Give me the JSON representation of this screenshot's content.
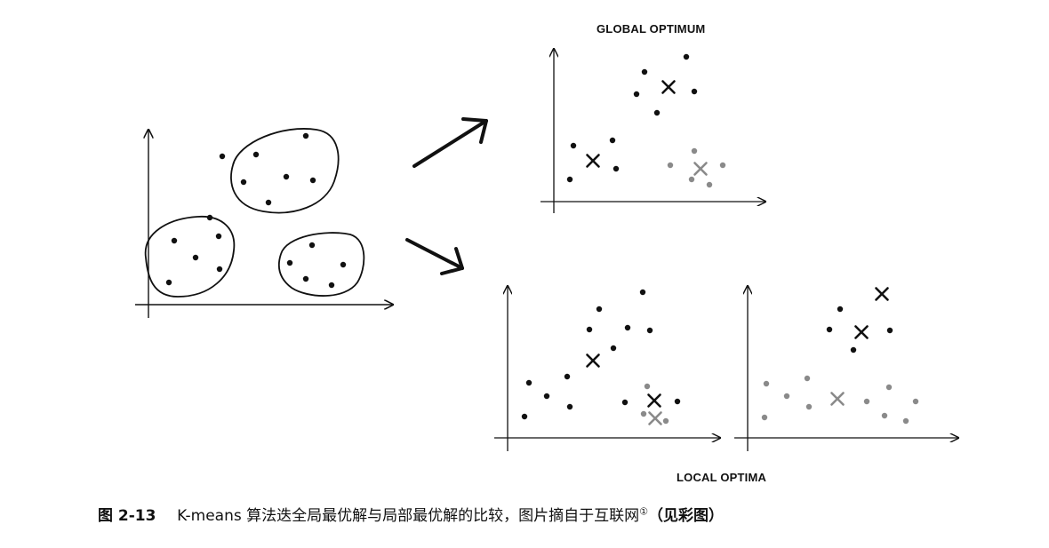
{
  "labels": {
    "global": "GLOBAL OPTIMUM",
    "local": "LOCAL OPTIMA"
  },
  "caption": {
    "figure_no": "图 2-13",
    "text": "K-means 算法迭全局最优解与局部最优解的比较，图片摘自于互联网",
    "footnote_mark": "①",
    "suffix": "（见彩图）"
  },
  "colors": {
    "ink": "#111111",
    "gray": "#8a8a8a"
  },
  "panels": {
    "input": {
      "points": [
        [
          344,
          153
        ],
        [
          288,
          174
        ],
        [
          250,
          176
        ],
        [
          322,
          199
        ],
        [
          352,
          203
        ],
        [
          274,
          205
        ],
        [
          302,
          228
        ],
        [
          236,
          245
        ],
        [
          246,
          266
        ],
        [
          196,
          271
        ],
        [
          220,
          290
        ],
        [
          247,
          303
        ],
        [
          190,
          318
        ],
        [
          351,
          276
        ],
        [
          326,
          296
        ],
        [
          386,
          298
        ],
        [
          344,
          314
        ],
        [
          373,
          321
        ]
      ],
      "clusters": 3
    },
    "global": {
      "points": [
        [
          725,
          81
        ],
        [
          772,
          64
        ],
        [
          716,
          106
        ],
        [
          781,
          103
        ],
        [
          739,
          127
        ],
        [
          645,
          164
        ],
        [
          689,
          158
        ],
        [
          693,
          190
        ],
        [
          641,
          202
        ],
        [
          754,
          186
        ],
        [
          781,
          170
        ],
        [
          813,
          186
        ],
        [
          798,
          208
        ],
        [
          778,
          202
        ]
      ],
      "gray_points": [
        [
          754,
          186
        ],
        [
          781,
          170
        ],
        [
          813,
          186
        ],
        [
          778,
          202
        ],
        [
          798,
          208
        ]
      ],
      "centroids": [
        [
          752,
          98,
          "ink"
        ],
        [
          667,
          181,
          "ink"
        ],
        [
          788,
          190,
          "gray"
        ]
      ]
    },
    "local_a": {
      "points": [
        [
          723,
          329
        ],
        [
          674,
          348
        ],
        [
          663,
          371
        ],
        [
          690,
          392
        ],
        [
          706,
          369
        ],
        [
          731,
          372
        ],
        [
          595,
          431
        ],
        [
          615,
          446
        ],
        [
          638,
          424
        ],
        [
          641,
          458
        ],
        [
          590,
          469
        ],
        [
          703,
          453
        ],
        [
          728,
          435
        ],
        [
          762,
          452
        ],
        [
          724,
          466
        ],
        [
          749,
          474
        ]
      ],
      "centroids": [
        [
          667,
          406,
          "ink"
        ],
        [
          736,
          451,
          "ink"
        ],
        [
          737,
          471,
          "gray"
        ]
      ]
    },
    "local_b": {
      "points": [
        [
          945,
          348
        ],
        [
          933,
          371
        ],
        [
          1001,
          372
        ],
        [
          960,
          394
        ]
      ],
      "gray_points": [
        [
          862,
          432
        ],
        [
          885,
          446
        ],
        [
          908,
          426
        ],
        [
          910,
          458
        ],
        [
          860,
          470
        ],
        [
          975,
          452
        ],
        [
          1000,
          436
        ],
        [
          1030,
          452
        ],
        [
          995,
          468
        ],
        [
          1019,
          474
        ]
      ],
      "centroids": [
        [
          992,
          331,
          "ink"
        ],
        [
          969,
          374,
          "ink"
        ],
        [
          942,
          449,
          "gray"
        ]
      ]
    }
  }
}
